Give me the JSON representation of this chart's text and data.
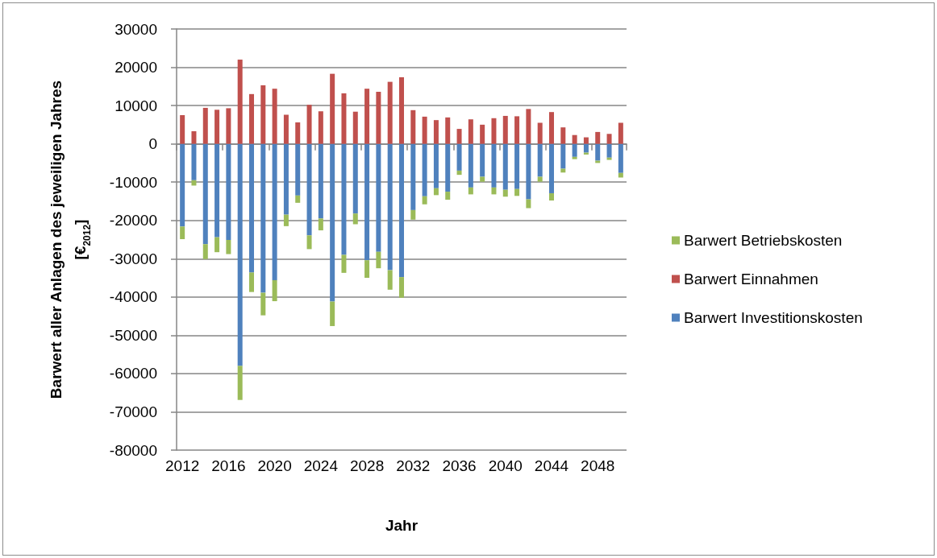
{
  "chart_data": {
    "type": "bar",
    "stacked": true,
    "xlabel": "Jahr",
    "ylabel": "Barwert aller Anlagen des jeweiligen Jahres [€$_{2012}$]",
    "categories": [
      "2012",
      null,
      null,
      null,
      "2016",
      null,
      null,
      null,
      "2020",
      null,
      null,
      null,
      "2024",
      null,
      null,
      null,
      "2028",
      null,
      null,
      null,
      "2032",
      null,
      null,
      null,
      "2036",
      null,
      null,
      null,
      "2040",
      null,
      null,
      null,
      "2044",
      null,
      null,
      null,
      "2048",
      null,
      null
    ],
    "series": [
      {
        "name": "Barwert Investitionskosten",
        "color": "#4f81bd",
        "values": [
          -21600,
          -9500,
          -26200,
          -24400,
          -25100,
          -58000,
          -33600,
          -38900,
          -35600,
          -18500,
          -13500,
          -23900,
          -19500,
          -41200,
          -29000,
          -18200,
          -30400,
          -28200,
          -33000,
          -34800,
          -17300,
          -13700,
          -11600,
          -12500,
          -7000,
          -11400,
          -8600,
          -11400,
          -12000,
          -11800,
          -14500,
          -8600,
          -12900,
          -6500,
          -3400,
          -2300,
          -4400,
          -3600,
          -7600
        ]
      },
      {
        "name": "Barwert Einnahmen",
        "color": "#c0504d",
        "values": [
          7500,
          3300,
          9400,
          8900,
          9300,
          22000,
          13000,
          15300,
          14400,
          7600,
          5600,
          10200,
          8500,
          18300,
          13200,
          8400,
          14400,
          13600,
          16200,
          17400,
          8800,
          7100,
          6200,
          6900,
          3900,
          6400,
          5000,
          6700,
          7300,
          7200,
          9100,
          5500,
          8300,
          4300,
          2300,
          1700,
          3100,
          2600,
          5500
        ]
      },
      {
        "name": "Barwert Betriebskosten",
        "color": "#9bbb59",
        "values": [
          -3300,
          -1400,
          -3900,
          -3900,
          -3700,
          -8900,
          -5100,
          -5900,
          -5500,
          -3000,
          -1900,
          -3600,
          -3100,
          -6400,
          -4700,
          -2800,
          -4600,
          -4300,
          -5100,
          -5400,
          -2500,
          -2100,
          -1800,
          -2100,
          -1100,
          -1800,
          -1300,
          -1800,
          -1800,
          -1800,
          -2300,
          -1300,
          -1900,
          -1000,
          -600,
          -500,
          -600,
          -600,
          -1200
        ]
      }
    ],
    "ylim": [
      -80000,
      30000
    ],
    "yticks": [
      -80000,
      -70000,
      -60000,
      -50000,
      -40000,
      -30000,
      -20000,
      -10000,
      0,
      10000,
      20000,
      30000
    ],
    "grid": "y",
    "legend": "right"
  }
}
